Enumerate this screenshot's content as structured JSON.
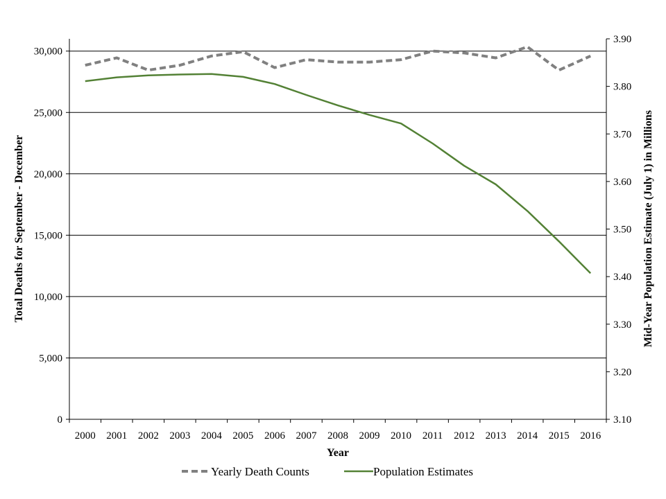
{
  "chart_data": {
    "type": "line",
    "title": "",
    "xlabel": "Year",
    "ylabel": "Total Deaths for September - December",
    "y2label": "Mid-Year Population Estimate (July 1) in Millions",
    "categories": [
      "2000",
      "2001",
      "2002",
      "2003",
      "2004",
      "2005",
      "2006",
      "2007",
      "2008",
      "2009",
      "2010",
      "2011",
      "2012",
      "2013",
      "2014",
      "2015",
      "2016"
    ],
    "ylim": [
      0,
      31000
    ],
    "y2lim": [
      3.1,
      3.9
    ],
    "yticks": [
      0,
      5000,
      10000,
      15000,
      20000,
      25000,
      30000
    ],
    "yticklabels": [
      "0",
      "5,000",
      "10,000",
      "15,000",
      "20,000",
      "25,000",
      "30,000"
    ],
    "y2ticks": [
      3.1,
      3.2,
      3.3,
      3.4,
      3.5,
      3.6,
      3.7,
      3.8,
      3.9
    ],
    "y2ticklabels": [
      "3.10",
      "3.20",
      "3.30",
      "3.40",
      "3.50",
      "3.60",
      "3.70",
      "3.80",
      "3.90"
    ],
    "grid": true,
    "legend_position": "bottom",
    "series": [
      {
        "name": "Yearly Death Counts",
        "axis": "left",
        "style": "dashed",
        "color": "#808080",
        "values": [
          28850,
          29450,
          28450,
          28850,
          29600,
          29950,
          28650,
          29300,
          29100,
          29100,
          29300,
          30000,
          29850,
          29450,
          30350,
          28450,
          29600
        ]
      },
      {
        "name": "Population Estimates",
        "axis": "right",
        "style": "solid",
        "color": "#538135",
        "values": [
          3.811,
          3.819,
          3.823,
          3.825,
          3.826,
          3.82,
          3.805,
          3.782,
          3.76,
          3.74,
          3.722,
          3.68,
          3.633,
          3.594,
          3.538,
          3.474,
          3.407
        ]
      }
    ]
  }
}
